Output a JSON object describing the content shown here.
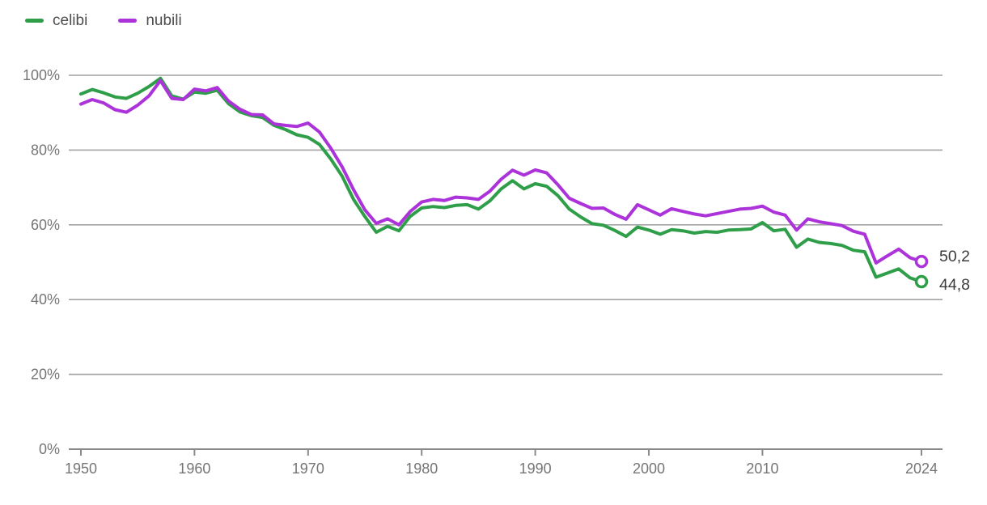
{
  "legend": {
    "items": [
      {
        "label": "celibi",
        "color": "#2f9e49"
      },
      {
        "label": "nubili",
        "color": "#ac32d9"
      }
    ]
  },
  "chart_data": {
    "type": "line",
    "x_start": 1950,
    "x_end": 2024,
    "x_step": 1,
    "series": [
      {
        "name": "celibi",
        "color": "#2f9e49",
        "values": [
          95.0,
          96.2,
          95.3,
          94.2,
          93.8,
          95.2,
          97.0,
          99.2,
          94.5,
          93.6,
          95.5,
          95.2,
          96.0,
          92.4,
          90.2,
          89.2,
          88.7,
          86.6,
          85.5,
          84.1,
          83.4,
          81.5,
          77.6,
          73.0,
          66.8,
          62.2,
          58.0,
          59.6,
          58.4,
          62.3,
          64.5,
          64.9,
          64.6,
          65.2,
          65.4,
          64.2,
          66.4,
          69.6,
          71.8,
          69.6,
          71.0,
          70.3,
          67.8,
          64.2,
          62.1,
          60.3,
          59.9,
          58.5,
          56.9,
          59.4,
          58.6,
          57.5,
          58.7,
          58.4,
          57.8,
          58.2,
          58.0,
          58.6,
          58.7,
          58.9,
          60.6,
          58.4,
          58.8,
          54.0,
          56.2,
          55.3,
          55.0,
          54.5,
          53.2,
          52.8,
          46.0,
          47.1,
          48.2,
          45.8,
          44.8
        ]
      },
      {
        "name": "nubili",
        "color": "#ac32d9",
        "values": [
          92.3,
          93.5,
          92.6,
          90.8,
          90.1,
          92.0,
          94.5,
          98.6,
          93.8,
          93.5,
          96.3,
          95.8,
          96.7,
          93.1,
          90.9,
          89.5,
          89.4,
          87.0,
          86.6,
          86.3,
          87.2,
          84.8,
          80.5,
          75.5,
          69.4,
          64.0,
          60.4,
          61.6,
          60.0,
          63.6,
          66.1,
          66.8,
          66.5,
          67.4,
          67.2,
          66.8,
          69.0,
          72.2,
          74.6,
          73.3,
          74.7,
          73.9,
          70.7,
          67.1,
          65.7,
          64.4,
          64.5,
          62.8,
          61.5,
          65.4,
          64.0,
          62.6,
          64.3,
          63.6,
          62.9,
          62.4,
          63.0,
          63.6,
          64.2,
          64.4,
          65.0,
          63.4,
          62.6,
          58.6,
          61.6,
          60.8,
          60.3,
          59.8,
          58.3,
          57.5,
          49.8,
          51.7,
          53.5,
          51.2,
          50.2
        ]
      }
    ],
    "y_ticks": [
      {
        "value": 0,
        "label": "0%"
      },
      {
        "value": 20,
        "label": "20%"
      },
      {
        "value": 40,
        "label": "40%"
      },
      {
        "value": 60,
        "label": "60%"
      },
      {
        "value": 80,
        "label": "80%"
      },
      {
        "value": 100,
        "label": "100%"
      }
    ],
    "x_ticks": [
      {
        "value": 1950,
        "label": "1950"
      },
      {
        "value": 1960,
        "label": "1960"
      },
      {
        "value": 1970,
        "label": "1970"
      },
      {
        "value": 1980,
        "label": "1980"
      },
      {
        "value": 1990,
        "label": "1990"
      },
      {
        "value": 2000,
        "label": "2000"
      },
      {
        "value": 2010,
        "label": "2010"
      },
      {
        "value": 2024,
        "label": "2024"
      }
    ],
    "end_labels": [
      {
        "series": "nubili",
        "text": "50,2",
        "value": 50.2
      },
      {
        "series": "celibi",
        "text": "44,8",
        "value": 44.8
      }
    ],
    "ylim": [
      0,
      100
    ],
    "xlim": [
      1950,
      2024
    ],
    "grid": "horizontal",
    "legend_position": "top-left",
    "title": "",
    "xlabel": "",
    "ylabel": ""
  },
  "colors": {
    "background": "#ffffff",
    "gridline": "#a3a3a3",
    "axis": "#8a8a8a",
    "tick_label": "#757575",
    "end_label": "#3c3c3c",
    "legend_text": "#4d4d4d"
  }
}
